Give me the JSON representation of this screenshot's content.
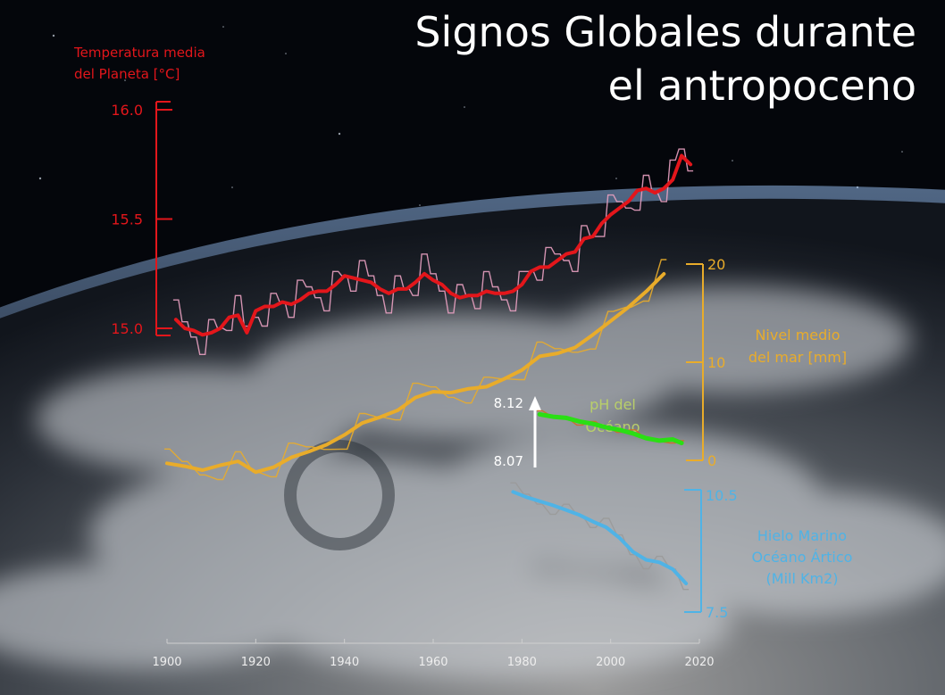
{
  "title_lines": [
    "Signos Globales durante",
    "el antropoceno"
  ],
  "colors": {
    "temperature": "#e3161b",
    "temperature_annual": "#e8a0c0",
    "sea_level": "#e9ac2a",
    "ph": "#2adf14",
    "ph_annual": "#d06a20",
    "sea_ice": "#4fb3e6",
    "sea_ice_annual": "#9a9a9a",
    "axis": "#cfcfcf",
    "text": "#ffffff"
  },
  "chart_data": [
    {
      "type": "line",
      "id": "temperature",
      "label_lines": [
        "Temperatura media",
        "del Planeta [°C]"
      ],
      "y_ticks": [
        "16.0",
        "15.5",
        "15.0"
      ],
      "ylim": [
        15.0,
        16.0
      ],
      "x": [
        1902,
        1904,
        1906,
        1908,
        1910,
        1912,
        1914,
        1916,
        1918,
        1920,
        1922,
        1924,
        1926,
        1928,
        1930,
        1932,
        1934,
        1936,
        1938,
        1940,
        1942,
        1944,
        1946,
        1948,
        1950,
        1952,
        1954,
        1956,
        1958,
        1960,
        1962,
        1964,
        1966,
        1968,
        1970,
        1972,
        1974,
        1976,
        1978,
        1980,
        1982,
        1984,
        1986,
        1988,
        1990,
        1992,
        1994,
        1996,
        1998,
        2000,
        2002,
        2004,
        2006,
        2008,
        2010,
        2012,
        2014,
        2016,
        2018
      ],
      "y": [
        15.04,
        15.0,
        14.99,
        14.97,
        14.98,
        15.0,
        15.05,
        15.06,
        14.98,
        15.08,
        15.1,
        15.1,
        15.12,
        15.11,
        15.13,
        15.16,
        15.17,
        15.17,
        15.2,
        15.24,
        15.23,
        15.22,
        15.21,
        15.18,
        15.16,
        15.18,
        15.18,
        15.21,
        15.25,
        15.22,
        15.2,
        15.16,
        15.14,
        15.15,
        15.15,
        15.17,
        15.16,
        15.16,
        15.17,
        15.2,
        15.26,
        15.28,
        15.28,
        15.31,
        15.34,
        15.35,
        15.41,
        15.42,
        15.48,
        15.52,
        15.55,
        15.58,
        15.63,
        15.64,
        15.62,
        15.64,
        15.68,
        15.79,
        15.75
      ]
    },
    {
      "type": "line",
      "id": "sea_level",
      "label_lines": [
        "Nivel medio",
        "del mar [mm]"
      ],
      "y_ticks": [
        "20",
        "10",
        "0"
      ],
      "ylim": [
        0,
        20
      ],
      "x": [
        1900,
        1904,
        1908,
        1912,
        1916,
        1920,
        1924,
        1928,
        1932,
        1936,
        1940,
        1944,
        1948,
        1952,
        1956,
        1960,
        1964,
        1968,
        1972,
        1976,
        1980,
        1984,
        1988,
        1992,
        1996,
        2000,
        2004,
        2008,
        2012
      ],
      "y": [
        -0.3,
        -0.6,
        -1.0,
        -0.5,
        -0.1,
        -1.2,
        -0.7,
        0.3,
        0.9,
        1.6,
        2.6,
        3.8,
        4.4,
        5.1,
        6.4,
        7.0,
        6.9,
        7.3,
        7.5,
        8.3,
        9.2,
        10.6,
        10.9,
        11.5,
        12.8,
        14.2,
        15.6,
        17.2,
        19.0
      ]
    },
    {
      "type": "line",
      "id": "ocean_ph",
      "label_lines": [
        "pH del",
        "Océano"
      ],
      "arrow_labels": [
        "8.12",
        "8.07"
      ],
      "x": [
        1984,
        1987,
        1990,
        1993,
        1996,
        1999,
        2002,
        2005,
        2008,
        2011,
        2014,
        2016
      ],
      "y": [
        8.11,
        8.108,
        8.107,
        8.104,
        8.102,
        8.099,
        8.097,
        8.094,
        8.09,
        8.088,
        8.089,
        8.086
      ]
    },
    {
      "type": "line",
      "id": "arctic_sea_ice",
      "label_lines": [
        "Hielo Marino",
        "Océano Ártico",
        "(Mill Km2)"
      ],
      "y_ticks": [
        "10.5",
        "7.5"
      ],
      "ylim": [
        7.5,
        10.5
      ],
      "x": [
        1978,
        1981,
        1984,
        1987,
        1990,
        1993,
        1996,
        1999,
        2002,
        2005,
        2008,
        2011,
        2014,
        2017
      ],
      "y": [
        10.45,
        10.32,
        10.22,
        10.12,
        10.0,
        9.88,
        9.72,
        9.58,
        9.32,
        8.98,
        8.78,
        8.72,
        8.55,
        8.2
      ]
    }
  ],
  "x_axis": {
    "ticks": [
      "1900",
      "1920",
      "1940",
      "1960",
      "1980",
      "2000",
      "2020"
    ],
    "xlim": [
      1900,
      2020
    ]
  }
}
